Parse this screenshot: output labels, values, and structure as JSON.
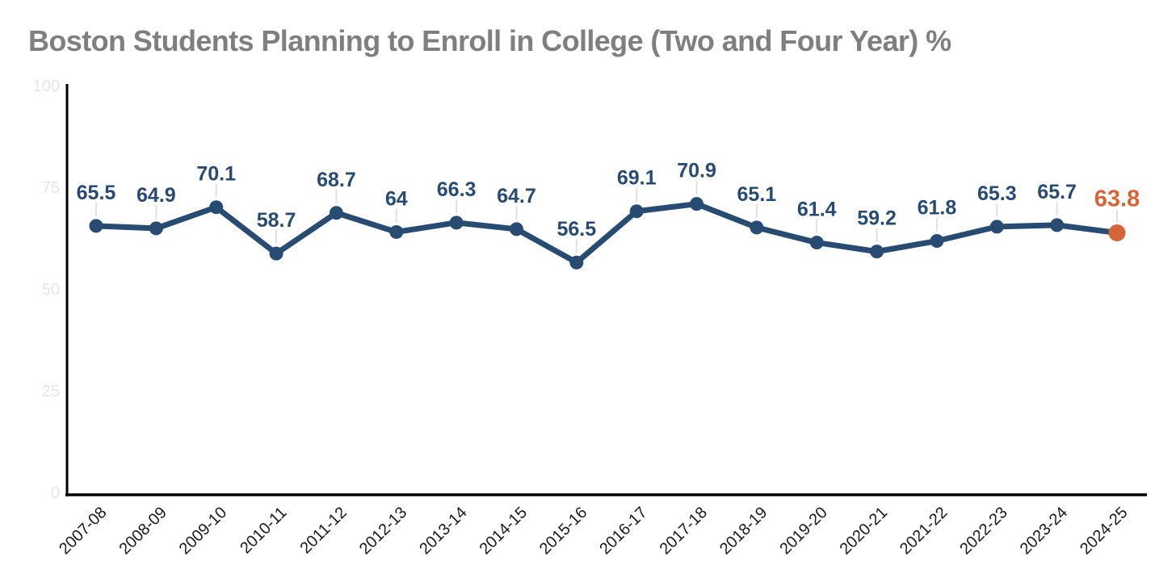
{
  "chart_data": {
    "type": "line",
    "title": "Boston Students Planning to Enroll in College (Two and Four Year) %",
    "categories": [
      "2007-08",
      "2008-09",
      "2009-10",
      "2010-11",
      "2011-12",
      "2012-13",
      "2013-14",
      "2014-15",
      "2015-16",
      "2016-17",
      "2017-18",
      "2018-19",
      "2019-20",
      "2020-21",
      "2021-22",
      "2022-23",
      "2023-24",
      "2024-25"
    ],
    "values": [
      65.5,
      64.9,
      70.1,
      58.7,
      68.7,
      64,
      66.3,
      64.7,
      56.5,
      69.1,
      70.9,
      65.1,
      61.4,
      59.2,
      61.8,
      65.3,
      65.7,
      63.8
    ],
    "xlabel": "",
    "ylabel": "",
    "ylim": [
      0,
      100
    ],
    "yticks": [
      0,
      25,
      50,
      75,
      100
    ],
    "grid": false,
    "legend": false,
    "data_labels_shown": true,
    "highlight_last_point": true,
    "colors": {
      "line": "#284b72",
      "marker": "#284b72",
      "highlight": "#d66436",
      "title": "#7f7f7f",
      "axis": "#000000",
      "ytick_label": "#e5e5e5",
      "xtick_label": "#1a1a1a",
      "leader_line": "#e0e0e0"
    }
  }
}
